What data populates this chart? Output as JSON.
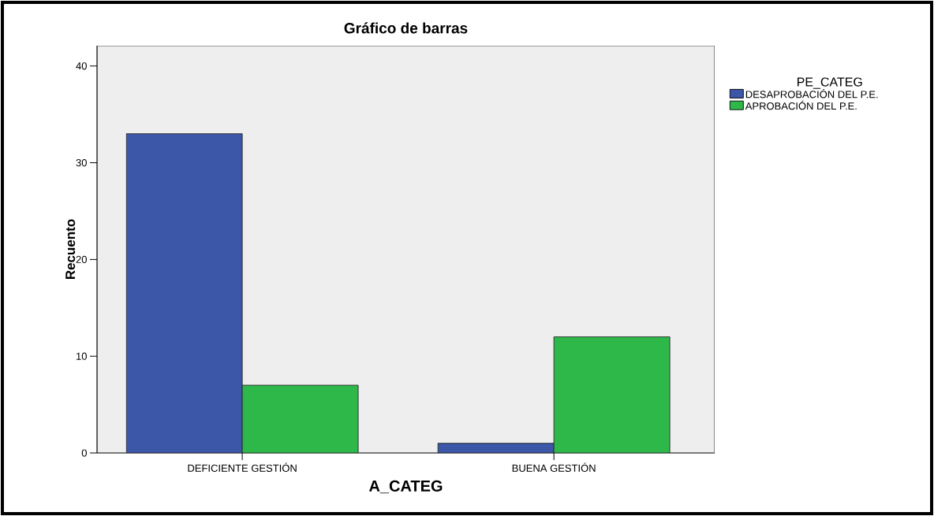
{
  "chart_data": {
    "type": "bar",
    "title": "Gráfico de barras",
    "xlabel": "A_CATEG",
    "ylabel": "Recuento",
    "legend_title": "PE_CATEG",
    "categories": [
      "DEFICIENTE GESTIÓN",
      "BUENA GESTIÓN"
    ],
    "series": [
      {
        "name": "DESAPROBACIÓN DEL P.E.",
        "color": "#3c56a8",
        "values": [
          33,
          1
        ]
      },
      {
        "name": "APROBACIÓN DEL P.E.",
        "color": "#2eb84a",
        "values": [
          7,
          12
        ]
      }
    ],
    "ylim": [
      0,
      42.1
    ],
    "yticks": [
      0,
      10,
      20,
      30,
      40
    ],
    "grid": false,
    "legend": "right"
  }
}
